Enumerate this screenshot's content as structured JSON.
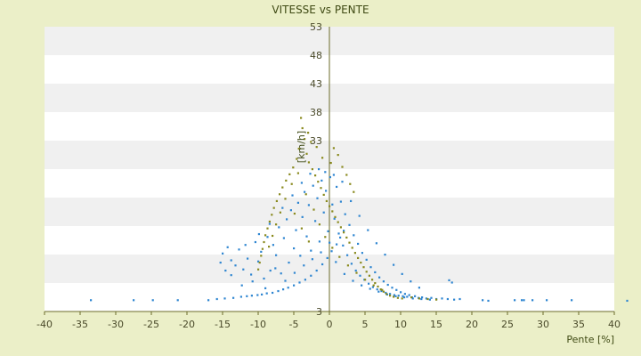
{
  "chart_data": {
    "type": "scatter",
    "title": "VITESSE vs PENTE",
    "xlabel": "Pente [%]",
    "ylabel": "[km/h]",
    "xlim": [
      -40,
      40
    ],
    "ylim": [
      3,
      53
    ],
    "x_ticks": [
      "-40",
      "-35",
      "-30",
      "-25",
      "-20",
      "-15",
      "-10",
      "-5",
      "0",
      "5",
      "10",
      "15",
      "20",
      "25",
      "30",
      "35",
      "40"
    ],
    "y_ticks": [
      "3",
      "8",
      "13",
      "18",
      "23",
      "28",
      "33",
      "38",
      "43",
      "48",
      "53"
    ],
    "y_tick_labels_shown": [
      "53",
      "48",
      "43",
      "38",
      "33",
      "3"
    ],
    "grid": "horizontal bands",
    "colors": {
      "series_blue": "#2f86d1",
      "series_olive": "#8a8a1e",
      "band_light": "#ffffff",
      "band_gray": "#f0f0f0",
      "background": "#ebefc8",
      "axis": "#6b6b2a"
    },
    "series": [
      {
        "color": "#2f86d1",
        "points": [
          [
            -33.5,
            5.0
          ],
          [
            -27.5,
            5.0
          ],
          [
            -24.8,
            5.0
          ],
          [
            -21.3,
            5.0
          ],
          [
            -17.0,
            5.0
          ],
          [
            -15.8,
            5.2
          ],
          [
            -14.7,
            5.3
          ],
          [
            -13.5,
            5.4
          ],
          [
            -12.4,
            5.6
          ],
          [
            -11.6,
            5.7
          ],
          [
            -10.9,
            5.8
          ],
          [
            -10.1,
            5.9
          ],
          [
            -9.5,
            6.0
          ],
          [
            -8.8,
            6.2
          ],
          [
            -8.0,
            6.3
          ],
          [
            -7.2,
            6.6
          ],
          [
            -6.5,
            6.9
          ],
          [
            -5.8,
            7.2
          ],
          [
            -5.0,
            7.6
          ],
          [
            -4.2,
            8.1
          ],
          [
            -3.4,
            8.6
          ],
          [
            -2.6,
            9.3
          ],
          [
            -1.8,
            10.2
          ],
          [
            -1.0,
            11.3
          ],
          [
            -0.3,
            12.4
          ],
          [
            0.3,
            13.6
          ],
          [
            1.0,
            14.8
          ],
          [
            1.5,
            16.0
          ],
          [
            2.0,
            17.2
          ],
          [
            -15.0,
            13.2
          ],
          [
            -14.3,
            14.3
          ],
          [
            -13.8,
            12.0
          ],
          [
            -13.2,
            11.1
          ],
          [
            -12.7,
            13.9
          ],
          [
            -12.1,
            10.4
          ],
          [
            -11.5,
            12.3
          ],
          [
            -11.0,
            9.5
          ],
          [
            -10.4,
            15.2
          ],
          [
            -10.0,
            11.8
          ],
          [
            -9.6,
            13.5
          ],
          [
            -9.2,
            8.8
          ],
          [
            -8.7,
            16.1
          ],
          [
            -8.3,
            10.2
          ],
          [
            -7.9,
            14.7
          ],
          [
            -7.5,
            12.9
          ],
          [
            -7.1,
            17.8
          ],
          [
            -6.8,
            9.7
          ],
          [
            -6.4,
            15.9
          ],
          [
            -6.0,
            19.2
          ],
          [
            -5.7,
            11.6
          ],
          [
            -5.4,
            20.8
          ],
          [
            -5.0,
            14.1
          ],
          [
            -4.7,
            17.3
          ],
          [
            -4.4,
            22.1
          ],
          [
            -4.1,
            12.8
          ],
          [
            -3.8,
            19.6
          ],
          [
            -3.5,
            24.0
          ],
          [
            -3.2,
            16.2
          ],
          [
            -2.9,
            21.7
          ],
          [
            -2.6,
            13.7
          ],
          [
            -2.3,
            25.1
          ],
          [
            -2.0,
            18.9
          ],
          [
            -1.7,
            22.9
          ],
          [
            -1.4,
            15.3
          ],
          [
            -1.1,
            26.0
          ],
          [
            -0.8,
            20.4
          ],
          [
            -0.5,
            24.2
          ],
          [
            -0.2,
            17.1
          ],
          [
            0.1,
            26.6
          ],
          [
            0.4,
            21.8
          ],
          [
            0.7,
            19.3
          ],
          [
            1.0,
            24.9
          ],
          [
            1.3,
            16.7
          ],
          [
            1.6,
            22.3
          ],
          [
            1.9,
            14.6
          ],
          [
            2.2,
            20.1
          ],
          [
            2.5,
            12.9
          ],
          [
            2.8,
            18.2
          ],
          [
            3.1,
            11.4
          ],
          [
            3.4,
            16.4
          ],
          [
            3.7,
            10.2
          ],
          [
            4.0,
            14.9
          ],
          [
            4.3,
            9.3
          ],
          [
            4.6,
            13.3
          ],
          [
            4.9,
            8.6
          ],
          [
            5.2,
            12.1
          ],
          [
            5.5,
            7.9
          ],
          [
            5.8,
            10.8
          ],
          [
            6.1,
            7.3
          ],
          [
            6.4,
            9.9
          ],
          [
            6.7,
            6.9
          ],
          [
            7.0,
            9.0
          ],
          [
            7.3,
            6.6
          ],
          [
            7.6,
            8.3
          ],
          [
            7.9,
            6.3
          ],
          [
            8.2,
            7.7
          ],
          [
            8.5,
            6.1
          ],
          [
            8.8,
            7.2
          ],
          [
            9.1,
            5.9
          ],
          [
            9.4,
            6.8
          ],
          [
            9.7,
            5.8
          ],
          [
            10.0,
            6.4
          ],
          [
            10.3,
            5.7
          ],
          [
            10.6,
            6.1
          ],
          [
            10.9,
            5.6
          ],
          [
            11.2,
            5.9
          ],
          [
            11.6,
            5.5
          ],
          [
            12.0,
            5.7
          ],
          [
            12.5,
            5.4
          ],
          [
            13.0,
            5.5
          ],
          [
            13.6,
            5.3
          ],
          [
            14.3,
            5.4
          ],
          [
            15.0,
            5.2
          ],
          [
            15.8,
            5.3
          ],
          [
            16.6,
            5.2
          ],
          [
            17.5,
            5.1
          ],
          [
            18.3,
            5.2
          ],
          [
            21.5,
            5.0
          ],
          [
            22.3,
            4.9
          ],
          [
            26.0,
            5.0
          ],
          [
            27.0,
            5.0
          ],
          [
            27.3,
            5.0
          ],
          [
            28.5,
            5.0
          ],
          [
            30.5,
            5.0
          ],
          [
            34.0,
            5.0
          ],
          [
            41.8,
            4.9
          ],
          [
            -13.8,
            9.4
          ],
          [
            -12.3,
            7.6
          ],
          [
            -10.8,
            8.3
          ],
          [
            -9.0,
            7.1
          ],
          [
            -7.6,
            10.6
          ],
          [
            -6.2,
            8.4
          ],
          [
            -4.9,
            9.8
          ],
          [
            -3.6,
            11.1
          ],
          [
            -2.4,
            12.2
          ],
          [
            -1.2,
            13.4
          ],
          [
            0.0,
            15.1
          ],
          [
            0.9,
            11.7
          ],
          [
            2.1,
            9.6
          ],
          [
            3.3,
            8.4
          ],
          [
            4.5,
            7.6
          ],
          [
            5.7,
            7.0
          ],
          [
            6.9,
            6.5
          ],
          [
            8.1,
            6.0
          ],
          [
            9.3,
            5.7
          ],
          [
            10.5,
            5.5
          ],
          [
            11.7,
            5.3
          ],
          [
            12.9,
            5.2
          ],
          [
            14.1,
            5.1
          ],
          [
            16.8,
            8.5
          ],
          [
            17.2,
            8.1
          ],
          [
            -15.3,
            11.6
          ],
          [
            -14.6,
            10.2
          ],
          [
            -11.8,
            14.7
          ],
          [
            -9.9,
            16.6
          ],
          [
            -8.4,
            18.4
          ],
          [
            -6.6,
            21.2
          ],
          [
            -5.2,
            23.4
          ],
          [
            -3.9,
            25.6
          ],
          [
            -2.7,
            27.2
          ],
          [
            -1.5,
            28.0
          ],
          [
            -0.6,
            27.5
          ],
          [
            0.6,
            27.0
          ],
          [
            1.8,
            25.8
          ],
          [
            3.0,
            22.4
          ],
          [
            4.2,
            19.8
          ],
          [
            5.4,
            17.3
          ],
          [
            6.6,
            15.0
          ],
          [
            7.8,
            13.0
          ],
          [
            9.0,
            11.2
          ],
          [
            10.2,
            9.6
          ],
          [
            11.4,
            8.3
          ],
          [
            12.6,
            7.2
          ]
        ]
      },
      {
        "color": "#8a8a1e",
        "points": [
          [
            -4.0,
            37.0
          ],
          [
            -3.8,
            35.2
          ],
          [
            -3.5,
            33.3
          ],
          [
            -4.3,
            31.6
          ],
          [
            -3.2,
            30.7
          ],
          [
            -4.6,
            29.8
          ],
          [
            -2.9,
            29.2
          ],
          [
            -5.1,
            28.3
          ],
          [
            -2.4,
            28.0
          ],
          [
            -5.6,
            27.1
          ],
          [
            -2.0,
            26.9
          ],
          [
            -6.1,
            26.0
          ],
          [
            -1.6,
            25.8
          ],
          [
            -6.6,
            24.8
          ],
          [
            -1.2,
            24.7
          ],
          [
            -7.0,
            23.6
          ],
          [
            -0.8,
            23.5
          ],
          [
            -7.4,
            22.4
          ],
          [
            -0.4,
            22.4
          ],
          [
            -7.8,
            21.2
          ],
          [
            0.0,
            21.5
          ],
          [
            -8.1,
            20.0
          ],
          [
            0.4,
            20.6
          ],
          [
            -8.4,
            18.8
          ],
          [
            0.8,
            19.6
          ],
          [
            -8.7,
            17.6
          ],
          [
            1.2,
            18.7
          ],
          [
            -9.0,
            16.4
          ],
          [
            1.6,
            17.8
          ],
          [
            -9.2,
            15.2
          ],
          [
            2.0,
            16.9
          ],
          [
            -9.4,
            14.0
          ],
          [
            2.4,
            16.0
          ],
          [
            -9.6,
            12.8
          ],
          [
            2.8,
            15.1
          ],
          [
            -9.8,
            11.6
          ],
          [
            3.2,
            14.2
          ],
          [
            -10.0,
            10.4
          ],
          [
            3.6,
            13.3
          ],
          [
            4.0,
            12.4
          ],
          [
            4.4,
            11.6
          ],
          [
            4.8,
            10.8
          ],
          [
            5.2,
            10.0
          ],
          [
            5.6,
            9.3
          ],
          [
            6.0,
            8.6
          ],
          [
            6.4,
            8.0
          ],
          [
            6.8,
            7.4
          ],
          [
            7.2,
            6.9
          ],
          [
            7.6,
            6.5
          ],
          [
            8.0,
            6.1
          ],
          [
            8.5,
            5.8
          ],
          [
            9.0,
            5.6
          ],
          [
            9.6,
            5.4
          ],
          [
            10.2,
            5.3
          ],
          [
            0.6,
            31.7
          ],
          [
            1.2,
            30.5
          ],
          [
            0.2,
            29.1
          ],
          [
            1.8,
            28.4
          ],
          [
            2.4,
            27.0
          ],
          [
            2.9,
            25.4
          ],
          [
            3.4,
            24.0
          ],
          [
            -1.0,
            30.0
          ],
          [
            -1.8,
            31.9
          ],
          [
            -2.6,
            32.8
          ],
          [
            -3.0,
            34.4
          ],
          [
            -4.4,
            27.3
          ],
          [
            -5.3,
            25.4
          ],
          [
            -6.2,
            22.8
          ],
          [
            -6.9,
            20.4
          ],
          [
            -7.5,
            18.3
          ],
          [
            -8.0,
            16.3
          ],
          [
            -8.5,
            14.4
          ],
          [
            -3.3,
            23.6
          ],
          [
            -2.2,
            20.9
          ],
          [
            -1.4,
            18.3
          ],
          [
            -0.6,
            16.1
          ],
          [
            0.4,
            14.2
          ],
          [
            1.4,
            12.6
          ],
          [
            2.6,
            11.1
          ],
          [
            3.8,
            9.8
          ],
          [
            5.0,
            8.6
          ],
          [
            6.2,
            7.6
          ],
          [
            7.4,
            6.8
          ],
          [
            11.5,
            5.5
          ],
          [
            12.6,
            5.3
          ],
          [
            13.8,
            5.2
          ],
          [
            15.0,
            5.1
          ],
          [
            -4.9,
            20.2
          ],
          [
            -3.9,
            17.6
          ],
          [
            -2.9,
            15.3
          ]
        ]
      }
    ]
  }
}
